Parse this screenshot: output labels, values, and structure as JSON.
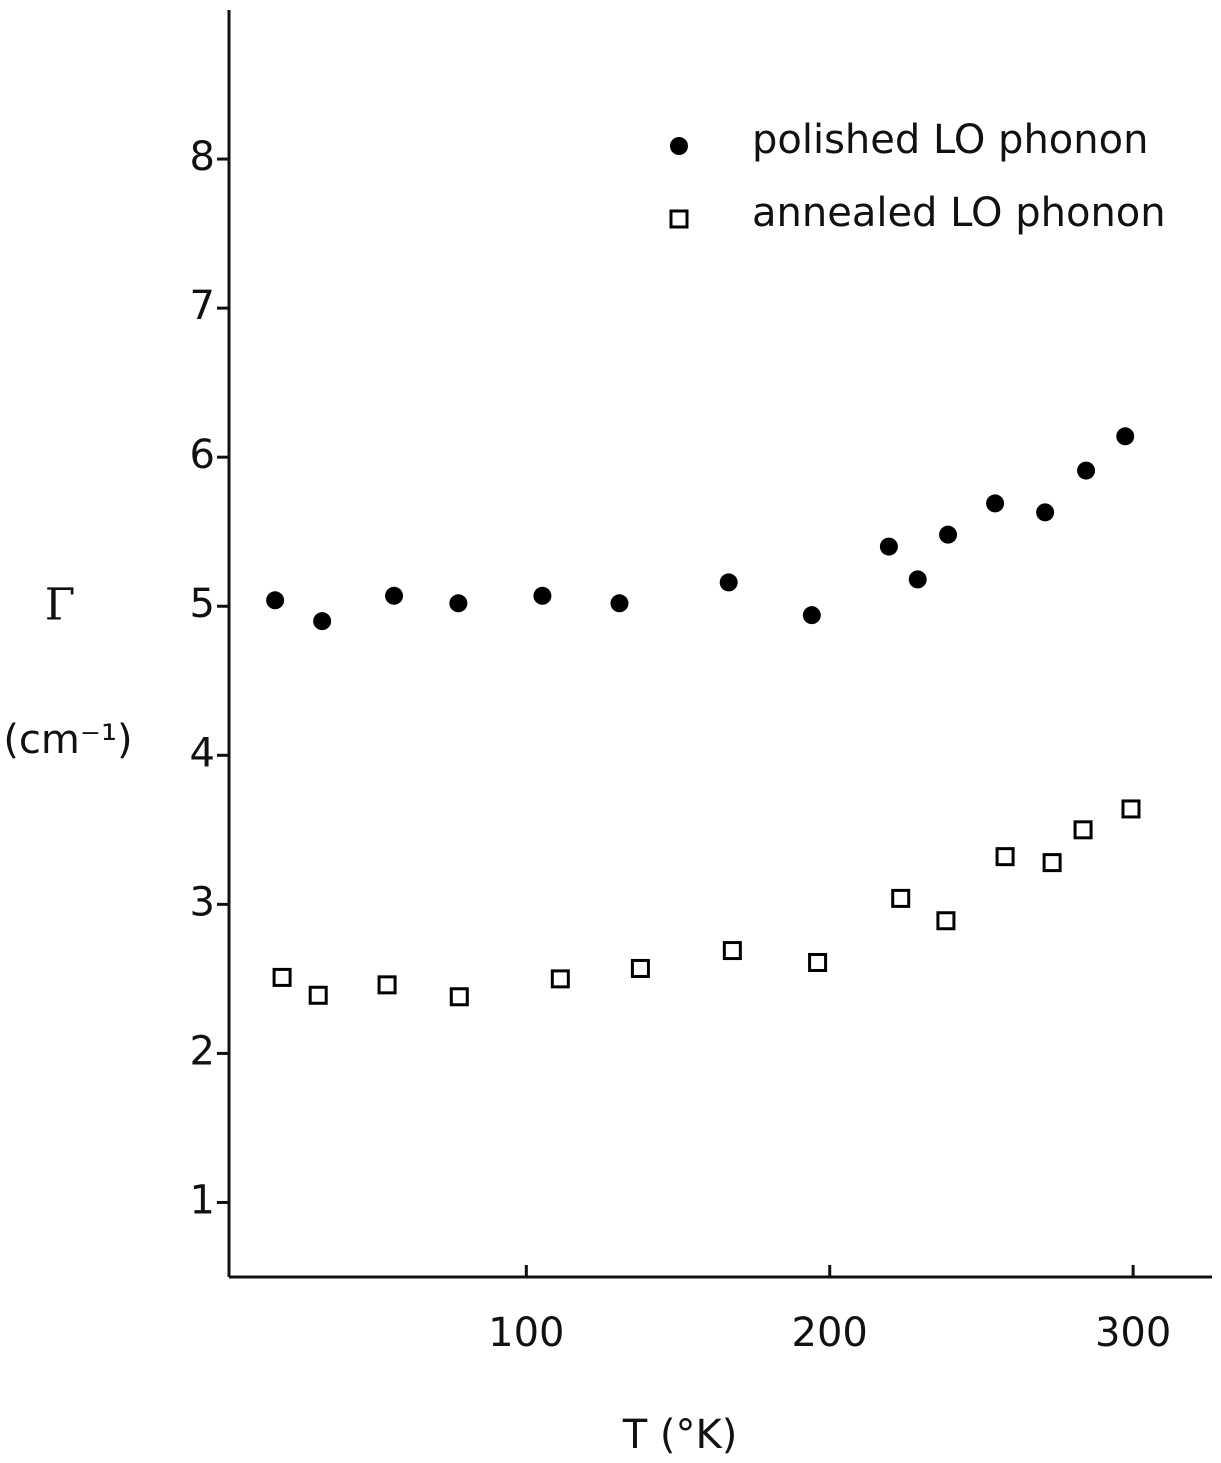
{
  "chart_data": {
    "type": "scatter",
    "x_label": "T (°K)",
    "y_label": "Γ",
    "y_unit": "(cm⁻¹)",
    "xlim": [
      2,
      326
    ],
    "xticks": [
      100,
      200,
      300
    ],
    "ylim": [
      0.5,
      9
    ],
    "yticks": [
      1,
      2,
      3,
      4,
      5,
      6,
      7,
      8
    ],
    "legend": "upper-right",
    "series": [
      {
        "name": "polished LO phonon",
        "color": "#000000",
        "marker": "filled-circle",
        "x": [
          17.2,
          32.7,
          56.4,
          77.6,
          105.3,
          130.7,
          166.7,
          194.1,
          219.5,
          229,
          239,
          254.5,
          271,
          284.5,
          297.4
        ],
        "values": [
          5.04,
          4.9,
          5.07,
          5.02,
          5.07,
          5.02,
          5.16,
          4.94,
          5.4,
          5.18,
          5.48,
          5.69,
          5.63,
          5.91,
          6.14
        ]
      },
      {
        "name": "annealed LO phonon",
        "color": "#000000",
        "marker": "open-square",
        "x": [
          19.5,
          31.4,
          54.1,
          77.9,
          111.2,
          137.6,
          167.9,
          196,
          223.4,
          238.3,
          257.8,
          273.3,
          283.5,
          299.3
        ],
        "values": [
          2.51,
          2.39,
          2.46,
          2.38,
          2.5,
          2.57,
          2.69,
          2.61,
          3.04,
          2.89,
          3.32,
          3.28,
          3.5,
          3.64
        ]
      }
    ]
  }
}
